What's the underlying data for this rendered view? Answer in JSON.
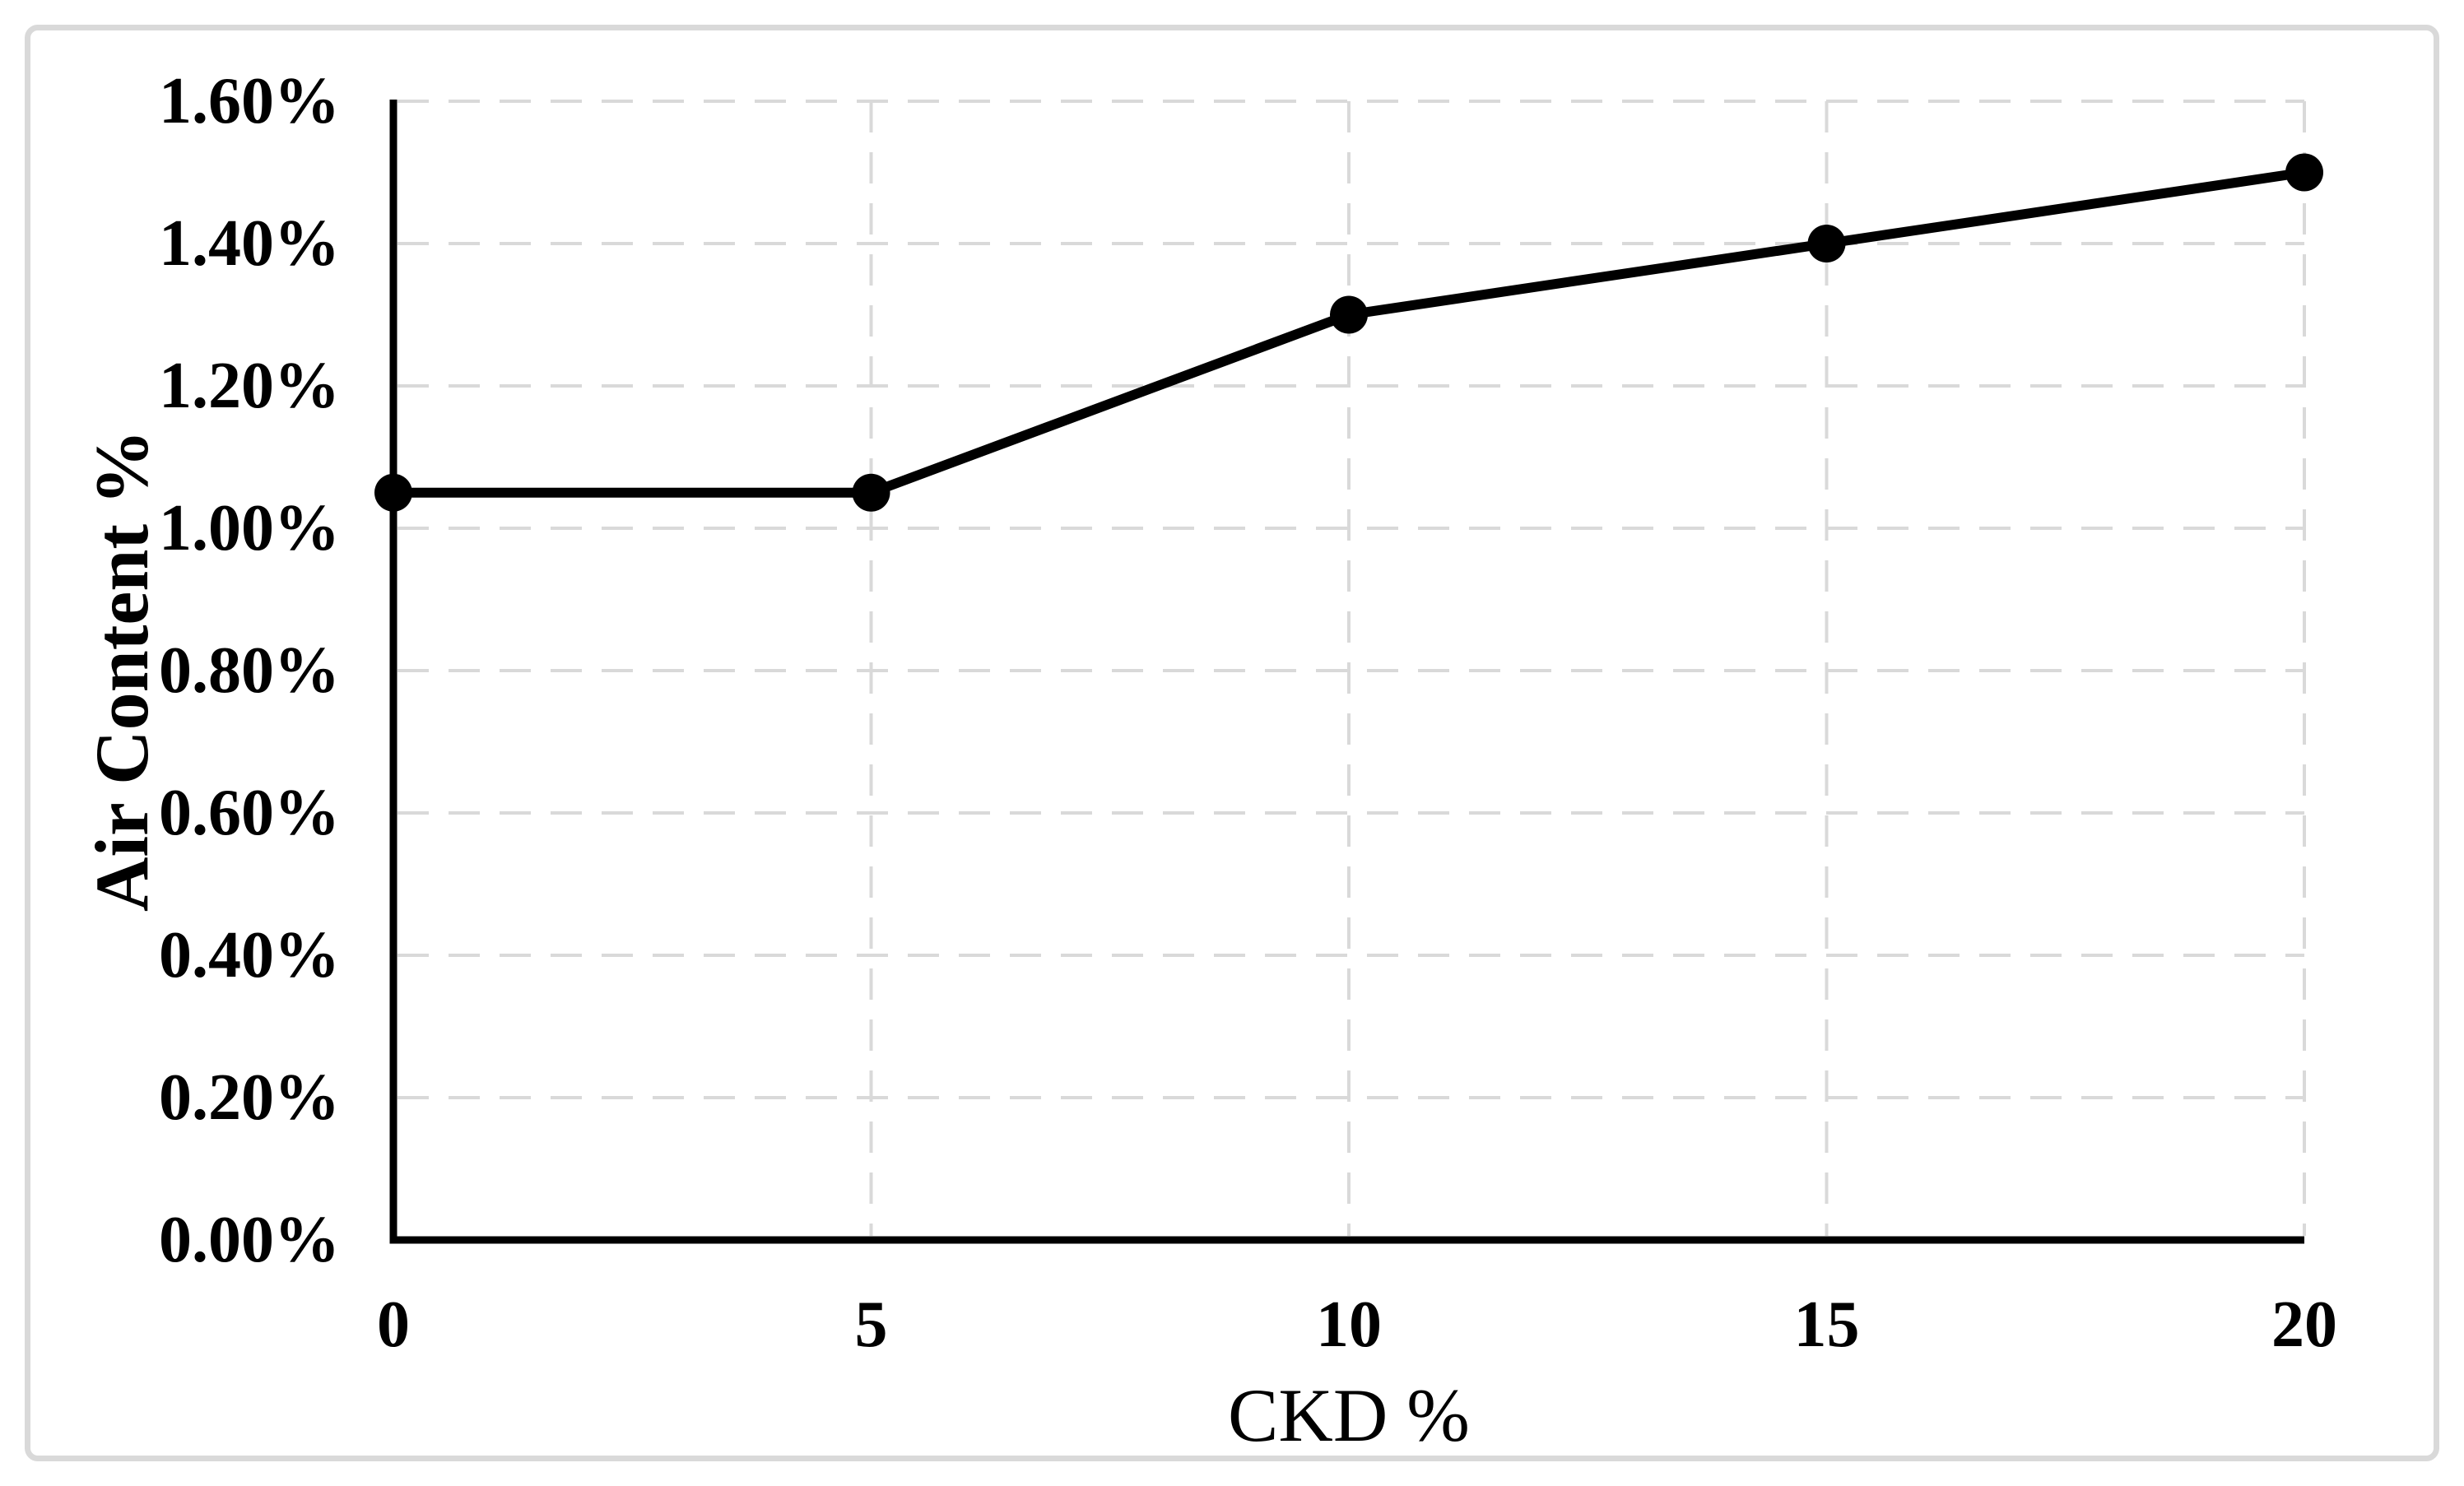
{
  "chart_data": {
    "type": "line",
    "title": "",
    "xlabel": "CKD %",
    "ylabel": "Air Content %",
    "x": [
      0,
      5,
      10,
      15,
      20
    ],
    "series": [
      {
        "name": "Air Content %",
        "values": [
          1.05,
          1.05,
          1.3,
          1.4,
          1.5
        ]
      }
    ],
    "x_tick_labels": [
      "0",
      "5",
      "10",
      "15",
      "20"
    ],
    "y_tick_labels": [
      "0.00%",
      "0.20%",
      "0.40%",
      "0.60%",
      "0.80%",
      "1.00%",
      "1.20%",
      "1.40%",
      "1.60%"
    ],
    "xlim": [
      0,
      20
    ],
    "ylim": [
      0,
      1.6
    ],
    "y_step": 0.2,
    "grid": "dashed-horizontal-and-vertical",
    "legend": "none",
    "marker": "filled-circle",
    "colors": {
      "series": "#000000",
      "grid": "#d9d9d9",
      "frame_border": "#d9d9d9",
      "background": "#ffffff",
      "text": "#000000"
    }
  }
}
